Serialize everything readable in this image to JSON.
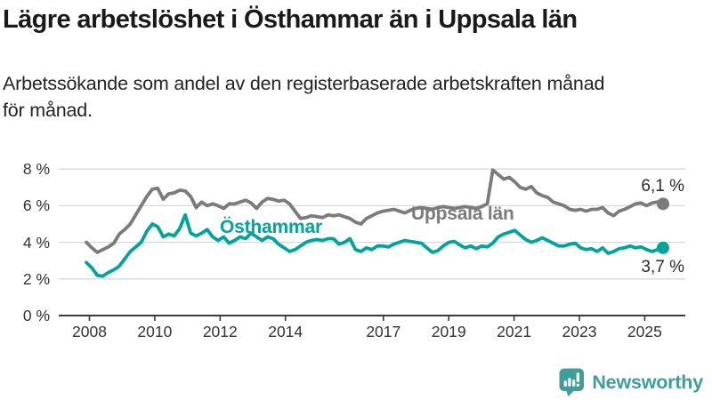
{
  "header": {
    "title": "Lägre arbetslöshet i Östhammar än i Uppsala län",
    "subtitle_lines": [
      "Arbetssökande som andel av den registerbaserade arbetskraften månad",
      "för månad."
    ]
  },
  "chart_data": {
    "type": "line",
    "title": "Lägre arbetslöshet i Östhammar än i Uppsala län",
    "xlabel": "",
    "ylabel": "",
    "y_unit": "%",
    "ylim": [
      0,
      8.8
    ],
    "grid": "horizontal",
    "legend_position": "inline-labels",
    "x_range_description": "månadsvis 2008 till mitten av 2025",
    "y_ticks": [
      8,
      6,
      4,
      2,
      0
    ],
    "y_tick_labels": [
      "8 %",
      "6 %",
      "4 %",
      "2 %",
      "0 %"
    ],
    "x_tick_years": [
      2008,
      2010,
      2012,
      2014,
      2017,
      2019,
      2021,
      2023,
      2025
    ],
    "x_tick_labels": [
      "2008",
      "2010",
      "2012",
      "2014",
      "2017",
      "2019",
      "2021",
      "2023",
      "2025"
    ],
    "series": [
      {
        "id": "uppsala-lan",
        "name": "Uppsala län",
        "color": "#7b7b7b",
        "end_label": "6,1 %",
        "end_value": 6.1,
        "values": [
          4.0,
          3.7,
          3.45,
          3.6,
          3.75,
          3.95,
          4.45,
          4.7,
          5.0,
          5.5,
          6.0,
          6.5,
          6.9,
          6.95,
          6.35,
          6.65,
          6.7,
          6.85,
          6.8,
          6.5,
          5.9,
          6.2,
          6.0,
          6.1,
          6.0,
          5.85,
          6.1,
          6.1,
          6.2,
          6.3,
          6.15,
          5.85,
          6.2,
          6.4,
          6.35,
          6.25,
          6.3,
          6.1,
          5.7,
          5.3,
          5.35,
          5.45,
          5.4,
          5.35,
          5.5,
          5.45,
          5.5,
          5.4,
          5.3,
          5.1,
          5.0,
          5.3,
          5.45,
          5.6,
          5.7,
          5.75,
          5.8,
          5.7,
          5.6,
          5.75,
          5.85,
          5.9,
          5.85,
          5.8,
          5.9,
          5.95,
          5.9,
          5.85,
          5.9,
          5.95,
          5.9,
          5.85,
          5.95,
          6.1,
          7.95,
          7.7,
          7.45,
          7.55,
          7.3,
          7.0,
          6.9,
          7.05,
          6.7,
          6.55,
          6.45,
          6.2,
          6.1,
          6.0,
          5.8,
          5.75,
          5.8,
          5.7,
          5.8,
          5.8,
          5.9,
          5.6,
          5.45,
          5.7,
          5.8,
          5.95,
          6.1,
          6.15,
          6.0,
          6.15,
          6.2,
          6.1
        ]
      },
      {
        "id": "osthammar",
        "name": "Östhammar",
        "color": "#00a49a",
        "end_label": "3,7 %",
        "end_value": 3.7,
        "values": [
          2.9,
          2.6,
          2.2,
          2.15,
          2.35,
          2.5,
          2.7,
          3.1,
          3.5,
          3.75,
          4.0,
          4.6,
          5.0,
          4.85,
          4.3,
          4.45,
          4.35,
          4.75,
          5.5,
          4.5,
          4.35,
          4.5,
          4.7,
          4.3,
          4.1,
          4.3,
          3.95,
          4.1,
          4.3,
          4.2,
          4.5,
          4.3,
          4.1,
          4.3,
          4.2,
          3.9,
          3.7,
          3.5,
          3.6,
          3.8,
          4.0,
          4.1,
          4.15,
          4.1,
          4.2,
          4.2,
          3.9,
          4.0,
          4.2,
          3.6,
          3.5,
          3.7,
          3.6,
          3.8,
          3.8,
          3.75,
          3.9,
          4.0,
          4.1,
          4.05,
          4.0,
          3.95,
          3.7,
          3.45,
          3.55,
          3.8,
          4.0,
          4.05,
          3.85,
          3.7,
          3.8,
          3.65,
          3.8,
          3.75,
          3.95,
          4.3,
          4.45,
          4.55,
          4.65,
          4.4,
          4.15,
          4.0,
          4.1,
          4.25,
          4.1,
          3.95,
          3.8,
          3.8,
          3.9,
          3.95,
          3.7,
          3.6,
          3.65,
          3.5,
          3.7,
          3.4,
          3.5,
          3.65,
          3.7,
          3.8,
          3.7,
          3.75,
          3.6,
          3.5,
          3.6,
          3.7
        ]
      }
    ]
  },
  "footer": {
    "brand_name": "Newsworthy"
  },
  "colors": {
    "uppsala": "#7b7b7b",
    "osthammar": "#00a49a",
    "grid": "#d8d8d8",
    "axis": "#3b3b3b",
    "text": "#333333",
    "brand": "#3f9e9a",
    "background": "#ffffff"
  }
}
